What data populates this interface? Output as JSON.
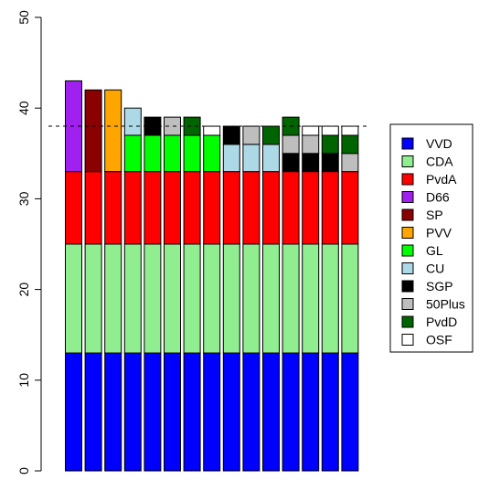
{
  "chart_data": {
    "type": "bar",
    "stacked": true,
    "title": "",
    "xlabel": "",
    "ylabel": "",
    "ylim": [
      0,
      50
    ],
    "yticks": [
      "0",
      "10",
      "20",
      "30",
      "40",
      "50"
    ],
    "reference_line": {
      "value": 38,
      "style": "dashed"
    },
    "legend": {
      "placement": "right"
    },
    "bars": 15,
    "series": [
      {
        "name": "VVD",
        "color": "#0000FF",
        "values": [
          13,
          13,
          13,
          13,
          13,
          13,
          13,
          13,
          13,
          13,
          13,
          13,
          13,
          13,
          13
        ]
      },
      {
        "name": "CDA",
        "color": "#90EE90",
        "values": [
          12,
          12,
          12,
          12,
          12,
          12,
          12,
          12,
          12,
          12,
          12,
          12,
          12,
          12,
          12
        ]
      },
      {
        "name": "PvdA",
        "color": "#FF0000",
        "values": [
          8,
          8,
          8,
          8,
          8,
          8,
          8,
          8,
          8,
          8,
          8,
          8,
          8,
          8,
          8
        ]
      },
      {
        "name": "D66",
        "color": "#A020F0",
        "values": [
          10,
          0,
          0,
          0,
          0,
          0,
          0,
          0,
          0,
          0,
          0,
          0,
          0,
          0,
          0
        ]
      },
      {
        "name": "SP",
        "color": "#8B0000",
        "values": [
          0,
          9,
          0,
          0,
          0,
          0,
          0,
          0,
          0,
          0,
          0,
          0,
          0,
          0,
          0
        ]
      },
      {
        "name": "PVV",
        "color": "#FFA500",
        "values": [
          0,
          0,
          9,
          0,
          0,
          0,
          0,
          0,
          0,
          0,
          0,
          0,
          0,
          0,
          0
        ]
      },
      {
        "name": "GL",
        "color": "#00FF00",
        "values": [
          0,
          0,
          0,
          4,
          4,
          4,
          4,
          4,
          0,
          0,
          0,
          0,
          0,
          0,
          0
        ]
      },
      {
        "name": "CU",
        "color": "#ADD8E6",
        "values": [
          0,
          0,
          0,
          3,
          0,
          0,
          0,
          0,
          3,
          3,
          3,
          0,
          0,
          0,
          0
        ]
      },
      {
        "name": "SGP",
        "color": "#000000",
        "values": [
          0,
          0,
          0,
          0,
          2,
          0,
          0,
          0,
          2,
          0,
          0,
          2,
          2,
          2,
          0
        ]
      },
      {
        "name": "50Plus",
        "color": "#BEBEBE",
        "values": [
          0,
          0,
          0,
          0,
          0,
          2,
          0,
          0,
          0,
          2,
          0,
          2,
          2,
          0,
          2
        ]
      },
      {
        "name": "PvdD",
        "color": "#006400",
        "values": [
          0,
          0,
          0,
          0,
          0,
          0,
          2,
          0,
          0,
          0,
          2,
          2,
          0,
          2,
          2
        ]
      },
      {
        "name": "OSF",
        "color": "#FFFFFF",
        "values": [
          0,
          0,
          0,
          0,
          0,
          0,
          0,
          1,
          0,
          0,
          0,
          0,
          1,
          1,
          1
        ]
      }
    ]
  }
}
